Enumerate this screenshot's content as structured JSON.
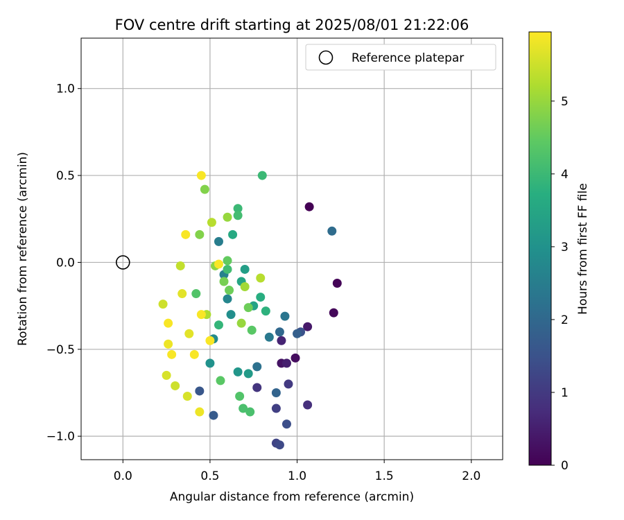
{
  "chart_data": {
    "type": "scatter",
    "title": "FOV centre drift starting at 2025/08/01 21:22:06",
    "xlabel": "Angular distance from reference (arcmin)",
    "ylabel": "Rotation from reference (arcmin)",
    "xlim": [
      -0.24,
      2.18
    ],
    "ylim": [
      -1.135,
      1.29
    ],
    "x_ticks": [
      0.0,
      0.5,
      1.0,
      1.5,
      2.0
    ],
    "x_tick_labels": [
      "0.0",
      "0.5",
      "1.0",
      "1.5",
      "2.0"
    ],
    "y_ticks": [
      -1.0,
      -0.5,
      0.0,
      0.5,
      1.0
    ],
    "y_tick_labels": [
      "−1.0",
      "−0.5",
      "0.0",
      "0.5",
      "1.0"
    ],
    "grid": true,
    "legend": {
      "placement": "top-right",
      "entries": [
        "Reference platepar"
      ]
    },
    "reference_point": {
      "x": 0.0,
      "y": 0.0,
      "label": "Reference platepar"
    },
    "colorbar": {
      "label": "Hours from first FF file",
      "range": [
        0,
        5.95
      ],
      "ticks": [
        0,
        1,
        2,
        3,
        4,
        5
      ],
      "tick_labels": [
        "0",
        "1",
        "2",
        "3",
        "4",
        "5"
      ],
      "colormap": "viridis"
    },
    "series": [
      {
        "points": [
          [
            1.07,
            0.32,
            0.0
          ],
          [
            1.23,
            -0.12,
            0.05
          ],
          [
            1.21,
            -0.29,
            0.1
          ],
          [
            0.99,
            -0.55,
            0.2
          ],
          [
            0.91,
            -0.58,
            0.3
          ],
          [
            1.06,
            -0.37,
            0.4
          ],
          [
            0.94,
            -0.58,
            0.5
          ],
          [
            0.91,
            -0.45,
            0.6
          ],
          [
            1.06,
            -0.82,
            0.8
          ],
          [
            0.77,
            -0.72,
            0.9
          ],
          [
            0.95,
            -0.7,
            1.0
          ],
          [
            0.88,
            -0.84,
            1.1
          ],
          [
            0.88,
            -1.04,
            1.2
          ],
          [
            0.9,
            -1.05,
            1.3
          ],
          [
            0.94,
            -0.93,
            1.4
          ],
          [
            1.02,
            -0.4,
            1.5
          ],
          [
            0.44,
            -0.74,
            1.6
          ],
          [
            0.52,
            -0.88,
            1.7
          ],
          [
            1.0,
            -0.41,
            1.8
          ],
          [
            0.88,
            -0.75,
            1.9
          ],
          [
            0.9,
            -0.4,
            2.0
          ],
          [
            1.2,
            0.18,
            2.1
          ],
          [
            0.77,
            -0.6,
            2.2
          ],
          [
            0.93,
            -0.31,
            2.3
          ],
          [
            0.84,
            -0.43,
            2.4
          ],
          [
            0.55,
            0.12,
            2.5
          ],
          [
            0.58,
            -0.07,
            2.6
          ],
          [
            0.6,
            -0.21,
            2.7
          ],
          [
            0.52,
            -0.44,
            2.8
          ],
          [
            0.62,
            -0.3,
            2.9
          ],
          [
            0.5,
            -0.58,
            3.0
          ],
          [
            0.66,
            -0.63,
            3.1
          ],
          [
            0.72,
            -0.64,
            3.2
          ],
          [
            0.7,
            -0.04,
            3.3
          ],
          [
            0.75,
            -0.25,
            3.4
          ],
          [
            0.68,
            -0.11,
            3.5
          ],
          [
            0.63,
            0.16,
            3.6
          ],
          [
            0.79,
            -0.2,
            3.7
          ],
          [
            0.82,
            -0.28,
            3.8
          ],
          [
            0.55,
            -0.36,
            3.9
          ],
          [
            0.66,
            0.31,
            4.0
          ],
          [
            0.8,
            0.5,
            4.0
          ],
          [
            0.6,
            -0.04,
            4.1
          ],
          [
            0.66,
            0.27,
            4.1
          ],
          [
            0.73,
            -0.86,
            4.2
          ],
          [
            0.69,
            -0.84,
            4.2
          ],
          [
            0.67,
            -0.77,
            4.3
          ],
          [
            0.42,
            -0.18,
            4.3
          ],
          [
            0.56,
            -0.68,
            4.4
          ],
          [
            0.74,
            -0.39,
            4.4
          ],
          [
            0.6,
            0.01,
            4.5
          ],
          [
            0.61,
            -0.16,
            4.6
          ],
          [
            0.72,
            -0.26,
            4.6
          ],
          [
            0.58,
            -0.11,
            4.7
          ],
          [
            0.47,
            0.42,
            4.8
          ],
          [
            0.44,
            0.16,
            4.8
          ],
          [
            0.53,
            -0.02,
            4.9
          ],
          [
            0.68,
            -0.35,
            5.0
          ],
          [
            0.6,
            0.26,
            5.0
          ],
          [
            0.36,
            0.16,
            5.9
          ],
          [
            0.45,
            0.5,
            5.9
          ],
          [
            0.7,
            -0.14,
            5.1
          ],
          [
            0.48,
            -0.3,
            5.2
          ],
          [
            0.79,
            -0.09,
            5.3
          ],
          [
            0.51,
            0.23,
            5.3
          ],
          [
            0.33,
            -0.02,
            5.4
          ],
          [
            0.23,
            -0.24,
            5.5
          ],
          [
            0.3,
            -0.71,
            5.5
          ],
          [
            0.25,
            -0.65,
            5.6
          ],
          [
            0.37,
            -0.77,
            5.6
          ],
          [
            0.38,
            -0.41,
            5.7
          ],
          [
            0.34,
            -0.18,
            5.7
          ],
          [
            0.44,
            -0.86,
            5.8
          ],
          [
            0.26,
            -0.47,
            5.8
          ],
          [
            0.28,
            -0.53,
            5.9
          ],
          [
            0.41,
            -0.53,
            5.9
          ],
          [
            0.26,
            -0.35,
            5.9
          ],
          [
            0.5,
            -0.45,
            5.9
          ],
          [
            0.55,
            -0.01,
            5.9
          ],
          [
            0.45,
            -0.3,
            5.9
          ]
        ]
      }
    ]
  }
}
